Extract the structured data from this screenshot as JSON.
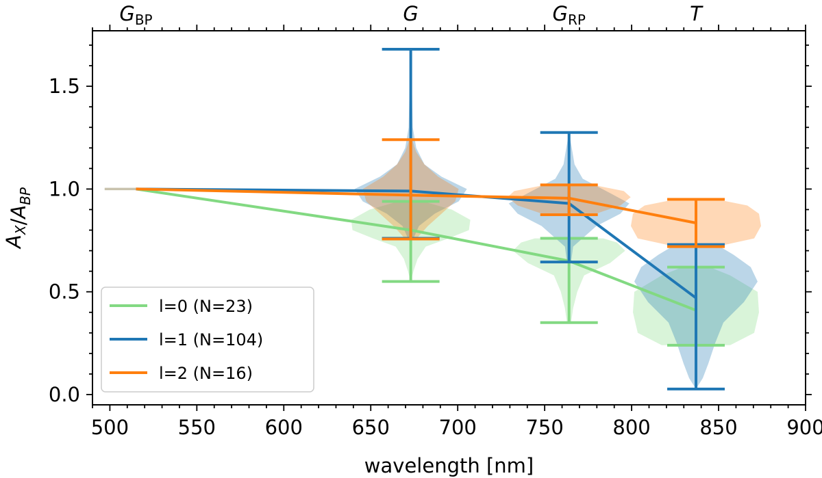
{
  "chart_data": {
    "type": "line",
    "xlabel": "wavelength [nm]",
    "ylabel": "A_X/A_BP",
    "xlim": [
      490,
      900
    ],
    "ylim": [
      -0.05,
      1.77
    ],
    "xticks": [
      500,
      550,
      600,
      650,
      700,
      750,
      800,
      850,
      900
    ],
    "yticks": [
      0.0,
      0.5,
      1.0,
      1.5
    ],
    "xtick_labels": [
      "500",
      "550",
      "600",
      "650",
      "700",
      "750",
      "800",
      "850",
      "900"
    ],
    "ytick_labels": [
      "0.0",
      "0.5",
      "1.0",
      "1.5"
    ],
    "top_axis_bands": [
      {
        "main": "G",
        "sub": "BP",
        "x": 515
      },
      {
        "main": "G",
        "sub": "",
        "x": 673
      },
      {
        "main": "G",
        "sub": "RP",
        "x": 764
      },
      {
        "main": "T",
        "sub": "",
        "x": 837
      }
    ],
    "reference_line": {
      "x": [
        497,
        515
      ],
      "y": [
        1.0,
        1.0
      ],
      "color": "#c8c2ad"
    },
    "series": [
      {
        "name": "l=0 (N=23)",
        "label": "l=0 (N=23)",
        "color": "#82d982",
        "x": [
          515,
          673,
          764,
          837
        ],
        "y": [
          1.0,
          0.8,
          0.65,
          0.41
        ],
        "errorbars": [
          {
            "x": 673,
            "min": 0.55,
            "max": 0.94
          },
          {
            "x": 764,
            "min": 0.35,
            "max": 0.76
          },
          {
            "x": 837,
            "min": 0.24,
            "max": 0.62
          }
        ],
        "violins": [
          {
            "x": 673,
            "profile": [
              [
                0.55,
                0
              ],
              [
                0.6,
                4
              ],
              [
                0.66,
                10
              ],
              [
                0.72,
                22
              ],
              [
                0.76,
                55
              ],
              [
                0.8,
                85
              ],
              [
                0.85,
                87
              ],
              [
                0.9,
                60
              ],
              [
                0.94,
                18
              ]
            ]
          },
          {
            "x": 764,
            "profile": [
              [
                0.35,
                3
              ],
              [
                0.42,
                6
              ],
              [
                0.5,
                12
              ],
              [
                0.58,
                22
              ],
              [
                0.64,
                60
              ],
              [
                0.7,
                82
              ],
              [
                0.74,
                70
              ],
              [
                0.76,
                50
              ]
            ]
          },
          {
            "x": 837,
            "profile": [
              [
                0.24,
                50
              ],
              [
                0.3,
                85
              ],
              [
                0.4,
                92
              ],
              [
                0.5,
                90
              ],
              [
                0.58,
                50
              ],
              [
                0.62,
                20
              ]
            ]
          }
        ]
      },
      {
        "name": "l=1 (N=104)",
        "label": "l=1 (N=104)",
        "color": "#1f77b4",
        "x": [
          515,
          673,
          764,
          837
        ],
        "y": [
          1.0,
          0.99,
          0.93,
          0.47
        ],
        "errorbars": [
          {
            "x": 673,
            "min": 0.76,
            "max": 1.68
          },
          {
            "x": 764,
            "min": 0.645,
            "max": 1.275
          },
          {
            "x": 837,
            "min": 0.027,
            "max": 0.73
          }
        ],
        "violins": [
          {
            "x": 673,
            "profile": [
              [
                0.76,
                4
              ],
              [
                0.82,
                12
              ],
              [
                0.88,
                35
              ],
              [
                0.94,
                70
              ],
              [
                1.0,
                82
              ],
              [
                1.06,
                45
              ],
              [
                1.12,
                20
              ],
              [
                1.2,
                8
              ],
              [
                1.3,
                3
              ],
              [
                1.45,
                2
              ],
              [
                1.68,
                0
              ]
            ]
          },
          {
            "x": 764,
            "profile": [
              [
                0.645,
                3
              ],
              [
                0.72,
                6
              ],
              [
                0.82,
                40
              ],
              [
                0.88,
                75
              ],
              [
                0.93,
                88
              ],
              [
                0.98,
                60
              ],
              [
                1.05,
                20
              ],
              [
                1.12,
                8
              ],
              [
                1.2,
                4
              ],
              [
                1.275,
                0
              ]
            ]
          },
          {
            "x": 837,
            "profile": [
              [
                0.027,
                0
              ],
              [
                0.08,
                10
              ],
              [
                0.15,
                18
              ],
              [
                0.25,
                28
              ],
              [
                0.35,
                40
              ],
              [
                0.45,
                70
              ],
              [
                0.55,
                90
              ],
              [
                0.62,
                80
              ],
              [
                0.68,
                55
              ],
              [
                0.73,
                30
              ]
            ]
          }
        ]
      },
      {
        "name": "l=2 (N=16)",
        "label": "l=2 (N=16)",
        "color": "#ff7f0e",
        "x": [
          515,
          673,
          764,
          837
        ],
        "y": [
          1.0,
          0.97,
          0.955,
          0.835
        ],
        "errorbars": [
          {
            "x": 673,
            "min": 0.757,
            "max": 1.24
          },
          {
            "x": 764,
            "min": 0.875,
            "max": 1.02
          },
          {
            "x": 837,
            "min": 0.72,
            "max": 0.95
          }
        ],
        "violins": [
          {
            "x": 673,
            "profile": [
              [
                0.757,
                8
              ],
              [
                0.82,
                25
              ],
              [
                0.88,
                45
              ],
              [
                0.94,
                65
              ],
              [
                1.0,
                70
              ],
              [
                1.06,
                40
              ],
              [
                1.12,
                20
              ],
              [
                1.18,
                8
              ],
              [
                1.24,
                2
              ]
            ]
          },
          {
            "x": 764,
            "profile": [
              [
                0.875,
                35
              ],
              [
                0.92,
                75
              ],
              [
                0.96,
                90
              ],
              [
                0.99,
                80
              ],
              [
                1.02,
                35
              ]
            ]
          },
          {
            "x": 837,
            "profile": [
              [
                0.72,
                30
              ],
              [
                0.76,
                85
              ],
              [
                0.82,
                95
              ],
              [
                0.88,
                92
              ],
              [
                0.92,
                75
              ],
              [
                0.95,
                30
              ]
            ]
          }
        ]
      }
    ],
    "legend": {
      "position": "lower-left"
    }
  }
}
